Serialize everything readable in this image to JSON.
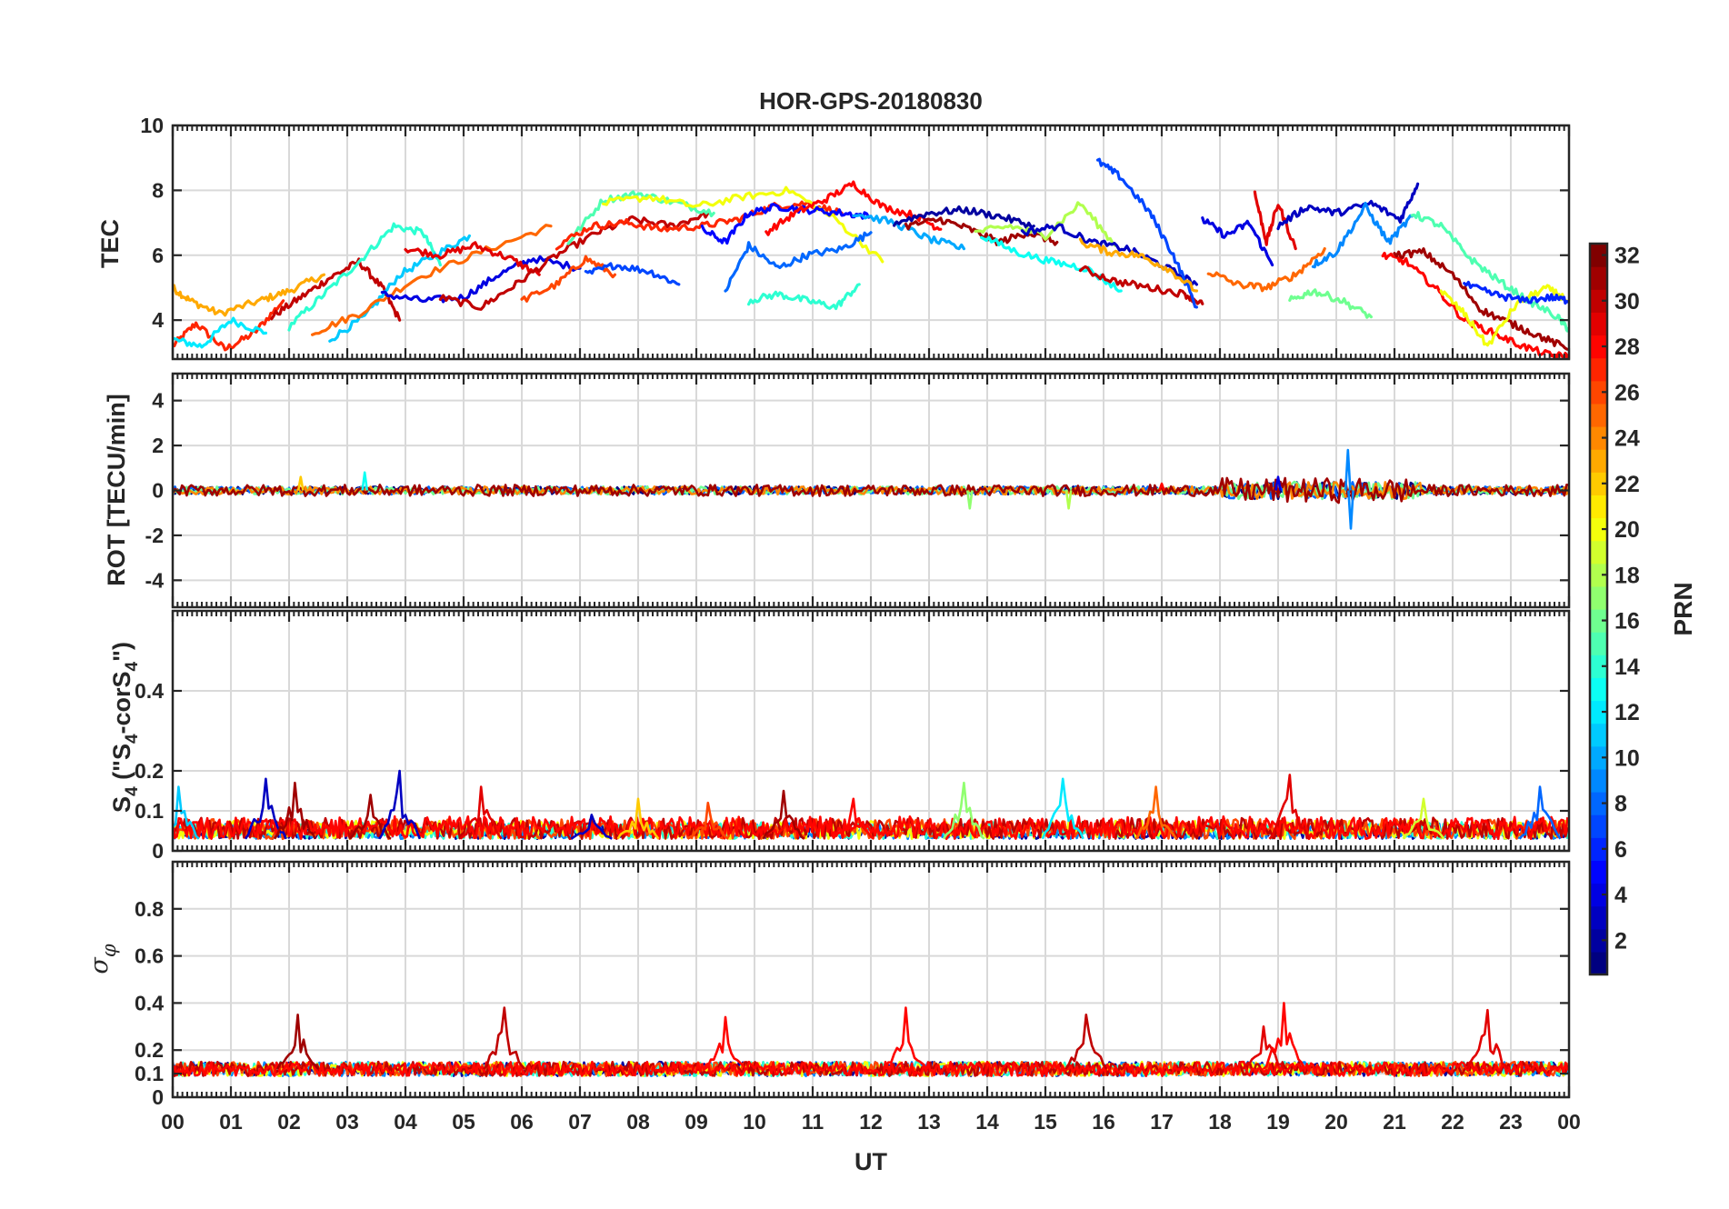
{
  "chart_data": {
    "type": "line",
    "title": "HOR-GPS-20180830",
    "xlabel": "UT",
    "x_tick_labels": [
      "00",
      "01",
      "02",
      "03",
      "04",
      "05",
      "06",
      "07",
      "08",
      "09",
      "10",
      "11",
      "12",
      "13",
      "14",
      "15",
      "16",
      "17",
      "18",
      "19",
      "20",
      "21",
      "22",
      "23",
      "00"
    ],
    "xlim": [
      0,
      24
    ],
    "grid": true,
    "colormap": "jet",
    "colorbar": {
      "label": "PRN",
      "range": [
        1,
        32
      ],
      "tick_labels": [
        "2",
        "4",
        "6",
        "8",
        "10",
        "12",
        "14",
        "16",
        "18",
        "20",
        "22",
        "24",
        "26",
        "28",
        "30",
        "32"
      ],
      "position": "right"
    },
    "panels": [
      {
        "name": "tec",
        "ylabel": "TEC",
        "ylim": [
          2.8,
          10
        ],
        "yticks": [
          4,
          6,
          8,
          10
        ],
        "ytick_labels": [
          "4",
          "6",
          "8",
          "10"
        ],
        "series": [
          {
            "prn": 27,
            "x": [
              0.0,
              0.4,
              0.9,
              1.4,
              1.9
            ],
            "y": [
              3.2,
              3.9,
              3.1,
              3.6,
              4.6
            ]
          },
          {
            "prn": 23,
            "x": [
              0.0,
              0.3,
              0.8,
              1.5,
              2.0,
              2.6
            ],
            "y": [
              5.0,
              4.6,
              4.2,
              4.6,
              4.9,
              5.4
            ]
          },
          {
            "prn": 12,
            "x": [
              0.0,
              0.5,
              1.0,
              1.6
            ],
            "y": [
              3.4,
              3.2,
              4.0,
              3.6
            ]
          },
          {
            "prn": 30,
            "x": [
              1.7,
              2.2,
              2.7,
              3.2,
              3.6,
              3.9
            ],
            "y": [
              4.1,
              4.7,
              5.3,
              5.8,
              5.0,
              4.0
            ]
          },
          {
            "prn": 14,
            "x": [
              2.0,
              2.6,
              3.2,
              3.8,
              4.3,
              4.6
            ],
            "y": [
              3.8,
              4.8,
              5.8,
              6.9,
              6.7,
              5.7
            ]
          },
          {
            "prn": 11,
            "x": [
              2.7,
              3.3,
              3.9,
              4.5,
              5.1
            ],
            "y": [
              3.4,
              4.1,
              5.4,
              6.0,
              6.6
            ]
          },
          {
            "prn": 25,
            "x": [
              2.4,
              3.2,
              4.2,
              5.3,
              6.5
            ],
            "y": [
              3.6,
              4.2,
              5.3,
              6.1,
              6.9
            ]
          },
          {
            "prn": 4,
            "x": [
              3.6,
              4.3,
              5.0,
              5.6,
              6.2,
              7.0
            ],
            "y": [
              4.8,
              4.6,
              4.7,
              5.4,
              5.9,
              5.6
            ]
          },
          {
            "prn": 29,
            "x": [
              4.0,
              4.6,
              5.2,
              5.8,
              6.3
            ],
            "y": [
              6.2,
              6.0,
              6.3,
              5.9,
              5.4
            ]
          },
          {
            "prn": 30,
            "x": [
              4.6,
              5.3,
              5.9,
              6.6,
              7.3,
              7.9,
              8.6,
              9.2
            ],
            "y": [
              4.7,
              4.4,
              5.1,
              6.0,
              6.7,
              7.1,
              6.9,
              7.3
            ]
          },
          {
            "prn": 26,
            "x": [
              6.0,
              6.6,
              7.1,
              7.6
            ],
            "y": [
              4.6,
              5.1,
              5.9,
              5.4
            ]
          },
          {
            "prn": 7,
            "x": [
              7.1,
              7.6,
              8.2,
              8.7
            ],
            "y": [
              5.4,
              5.7,
              5.5,
              5.1
            ]
          },
          {
            "prn": 15,
            "x": [
              6.8,
              7.4,
              8.0,
              8.7,
              9.3
            ],
            "y": [
              6.4,
              7.7,
              7.9,
              7.6,
              7.3
            ]
          },
          {
            "prn": 27,
            "x": [
              6.6,
              7.2,
              7.8,
              8.4,
              9.1,
              9.7,
              10.3,
              10.9,
              11.5
            ],
            "y": [
              6.3,
              6.9,
              7.0,
              6.8,
              6.9,
              7.1,
              7.5,
              7.6,
              7.3
            ]
          },
          {
            "prn": 20,
            "x": [
              7.4,
              8.2,
              9.0,
              9.8,
              10.6,
              11.4,
              12.2
            ],
            "y": [
              7.6,
              7.8,
              7.5,
              7.8,
              8.0,
              7.1,
              5.8
            ]
          },
          {
            "prn": 8,
            "x": [
              9.5,
              9.9,
              10.4,
              10.9,
              11.5,
              12.0
            ],
            "y": [
              4.9,
              6.3,
              5.6,
              6.0,
              6.2,
              6.7
            ]
          },
          {
            "prn": 14,
            "x": [
              9.9,
              10.4,
              10.9,
              11.4,
              11.8
            ],
            "y": [
              4.6,
              4.8,
              4.6,
              4.4,
              5.1
            ]
          },
          {
            "prn": 5,
            "x": [
              9.1,
              9.5,
              9.9,
              10.4,
              10.9,
              11.5,
              12.0
            ],
            "y": [
              6.8,
              6.4,
              7.3,
              7.5,
              7.4,
              7.3,
              7.2
            ]
          },
          {
            "prn": 28,
            "x": [
              10.2,
              10.7,
              11.2,
              11.7,
              12.2,
              12.8,
              13.2
            ],
            "y": [
              6.7,
              7.3,
              7.7,
              8.2,
              7.5,
              7.2,
              6.8
            ]
          },
          {
            "prn": 10,
            "x": [
              11.7,
              12.4,
              13.0,
              13.6
            ],
            "y": [
              7.3,
              7.0,
              6.5,
              6.2
            ]
          },
          {
            "prn": 2,
            "x": [
              12.4,
              13.0,
              13.6,
              14.2,
              14.8
            ],
            "y": [
              7.0,
              7.3,
              7.4,
              7.2,
              6.9
            ]
          },
          {
            "prn": 31,
            "x": [
              12.6,
              13.2,
              13.7,
              14.2,
              14.7,
              15.2
            ],
            "y": [
              6.9,
              7.1,
              6.8,
              6.4,
              6.7,
              6.4
            ]
          },
          {
            "prn": 18,
            "x": [
              13.8,
              14.4,
              15.0,
              15.6,
              16.2
            ],
            "y": [
              6.7,
              6.9,
              6.6,
              7.6,
              6.3
            ]
          },
          {
            "prn": 13,
            "x": [
              13.9,
              14.5,
              15.1,
              15.7,
              16.3
            ],
            "y": [
              6.6,
              6.1,
              5.8,
              5.6,
              4.9
            ]
          },
          {
            "prn": 3,
            "x": [
              14.6,
              15.2,
              15.8,
              16.4,
              17.0,
              17.6
            ],
            "y": [
              6.7,
              6.9,
              6.4,
              6.2,
              5.7,
              5.1
            ]
          },
          {
            "prn": 30,
            "x": [
              15.6,
              16.2,
              16.8,
              17.4,
              17.7
            ],
            "y": [
              5.6,
              5.2,
              5.0,
              4.8,
              4.5
            ]
          },
          {
            "prn": 7,
            "x": [
              15.9,
              16.3,
              16.8,
              17.2,
              17.6
            ],
            "y": [
              8.9,
              8.4,
              7.3,
              6.0,
              4.4
            ]
          },
          {
            "prn": 23,
            "x": [
              15.6,
              16.1,
              16.6,
              17.1,
              17.6
            ],
            "y": [
              6.4,
              6.1,
              6.0,
              5.6,
              4.9
            ]
          },
          {
            "prn": 4,
            "x": [
              17.7,
              18.1,
              18.5,
              18.9
            ],
            "y": [
              7.1,
              6.6,
              7.0,
              5.7
            ]
          },
          {
            "prn": 25,
            "x": [
              17.8,
              18.3,
              18.8,
              19.3,
              19.8
            ],
            "y": [
              5.5,
              5.1,
              5.0,
              5.4,
              6.2
            ]
          },
          {
            "prn": 29,
            "x": [
              18.6,
              18.8,
              19.0,
              19.3
            ],
            "y": [
              7.9,
              6.4,
              7.6,
              6.2
            ]
          },
          {
            "prn": 3,
            "x": [
              19.0,
              19.5,
              20.0,
              20.6,
              21.1,
              21.4
            ],
            "y": [
              6.9,
              7.5,
              7.3,
              7.6,
              7.1,
              8.2
            ]
          },
          {
            "prn": 9,
            "x": [
              19.6,
              20.0,
              20.5,
              20.9,
              21.3
            ],
            "y": [
              5.7,
              6.1,
              7.5,
              6.4,
              7.2
            ]
          },
          {
            "prn": 16,
            "x": [
              19.2,
              19.6,
              20.1,
              20.6
            ],
            "y": [
              4.6,
              4.9,
              4.6,
              4.1
            ]
          },
          {
            "prn": 28,
            "x": [
              20.8,
              21.2,
              21.7,
              22.2,
              22.7,
              23.2,
              23.7,
              24.0
            ],
            "y": [
              6.0,
              5.8,
              5.0,
              4.0,
              3.6,
              3.2,
              2.9,
              2.9
            ]
          },
          {
            "prn": 31,
            "x": [
              21.0,
              21.5,
              22.0,
              22.5,
              23.0,
              23.5,
              24.0
            ],
            "y": [
              6.0,
              6.1,
              5.4,
              4.3,
              3.9,
              3.5,
              3.1
            ]
          },
          {
            "prn": 15,
            "x": [
              21.3,
              21.8,
              22.3,
              22.8,
              23.3,
              23.8,
              24.0
            ],
            "y": [
              7.3,
              6.9,
              5.9,
              5.2,
              4.6,
              4.1,
              3.7
            ]
          },
          {
            "prn": 20,
            "x": [
              21.8,
              22.2,
              22.6,
              23.1,
              23.6,
              24.0
            ],
            "y": [
              4.9,
              4.2,
              3.2,
              4.5,
              5.0,
              4.6
            ]
          },
          {
            "prn": 6,
            "x": [
              22.2,
              22.7,
              23.2,
              23.7,
              24.0
            ],
            "y": [
              5.1,
              4.8,
              4.6,
              4.7,
              4.6
            ]
          }
        ]
      },
      {
        "name": "rot",
        "ylabel": "ROT [TECU/min]",
        "ylim": [
          -5.2,
          5.2
        ],
        "yticks": [
          -4,
          -2,
          0,
          2,
          4
        ],
        "ytick_labels": [
          "-4",
          "-2",
          "0",
          "2",
          "4"
        ],
        "baseline": 0,
        "typical_amplitude": 0.25,
        "spikes": [
          {
            "x": 20.2,
            "y": 1.8,
            "prn": 9
          },
          {
            "x": 20.25,
            "y": -1.7,
            "prn": 9
          },
          {
            "x": 19.0,
            "y": 0.6,
            "prn": 4
          },
          {
            "x": 17.0,
            "y": 0.3,
            "prn": 28
          },
          {
            "x": 13.7,
            "y": -0.8,
            "prn": 17
          },
          {
            "x": 15.4,
            "y": -0.8,
            "prn": 18
          },
          {
            "x": 3.3,
            "y": 0.8,
            "prn": 13
          },
          {
            "x": 2.2,
            "y": 0.6,
            "prn": 22
          }
        ]
      },
      {
        "name": "s4",
        "ylabel": "S4 (\"S4-corS4\")",
        "ylim": [
          0,
          0.6
        ],
        "yticks": [
          0,
          0.1,
          0.2,
          0.4
        ],
        "ytick_labels": [
          "0",
          "0.1",
          "0.2",
          "0.4"
        ],
        "baseline": 0.03,
        "peaks": [
          {
            "x": 0.1,
            "y": 0.16,
            "prn": 11
          },
          {
            "x": 1.6,
            "y": 0.18,
            "prn": 3
          },
          {
            "x": 2.1,
            "y": 0.17,
            "prn": 31
          },
          {
            "x": 3.4,
            "y": 0.14,
            "prn": 31
          },
          {
            "x": 3.9,
            "y": 0.2,
            "prn": 3
          },
          {
            "x": 5.3,
            "y": 0.16,
            "prn": 29
          },
          {
            "x": 7.2,
            "y": 0.09,
            "prn": 3
          },
          {
            "x": 8.0,
            "y": 0.13,
            "prn": 22
          },
          {
            "x": 9.2,
            "y": 0.12,
            "prn": 26
          },
          {
            "x": 10.5,
            "y": 0.15,
            "prn": 31
          },
          {
            "x": 11.7,
            "y": 0.13,
            "prn": 28
          },
          {
            "x": 13.6,
            "y": 0.17,
            "prn": 17
          },
          {
            "x": 15.3,
            "y": 0.18,
            "prn": 12
          },
          {
            "x": 16.9,
            "y": 0.16,
            "prn": 25
          },
          {
            "x": 19.2,
            "y": 0.19,
            "prn": 29
          },
          {
            "x": 21.5,
            "y": 0.13,
            "prn": 19
          },
          {
            "x": 23.5,
            "y": 0.16,
            "prn": 8
          }
        ]
      },
      {
        "name": "sigma_phi",
        "ylabel": "σ φ",
        "ylim": [
          0,
          1.0
        ],
        "yticks": [
          0,
          0.1,
          0.2,
          0.4,
          0.6,
          0.8
        ],
        "ytick_labels": [
          "0",
          "0.1",
          "0.2",
          "0.4",
          "0.6",
          "0.8"
        ],
        "baseline": 0.12,
        "spikes": [
          {
            "x": 2.15,
            "y": 0.35,
            "prn": 31
          },
          {
            "x": 5.7,
            "y": 0.38,
            "prn": 30
          },
          {
            "x": 9.5,
            "y": 0.34,
            "prn": 28
          },
          {
            "x": 12.6,
            "y": 0.38,
            "prn": 28
          },
          {
            "x": 15.7,
            "y": 0.35,
            "prn": 30
          },
          {
            "x": 18.75,
            "y": 0.3,
            "prn": 29
          },
          {
            "x": 19.1,
            "y": 0.4,
            "prn": 28
          },
          {
            "x": 22.6,
            "y": 0.37,
            "prn": 29
          }
        ]
      }
    ]
  }
}
